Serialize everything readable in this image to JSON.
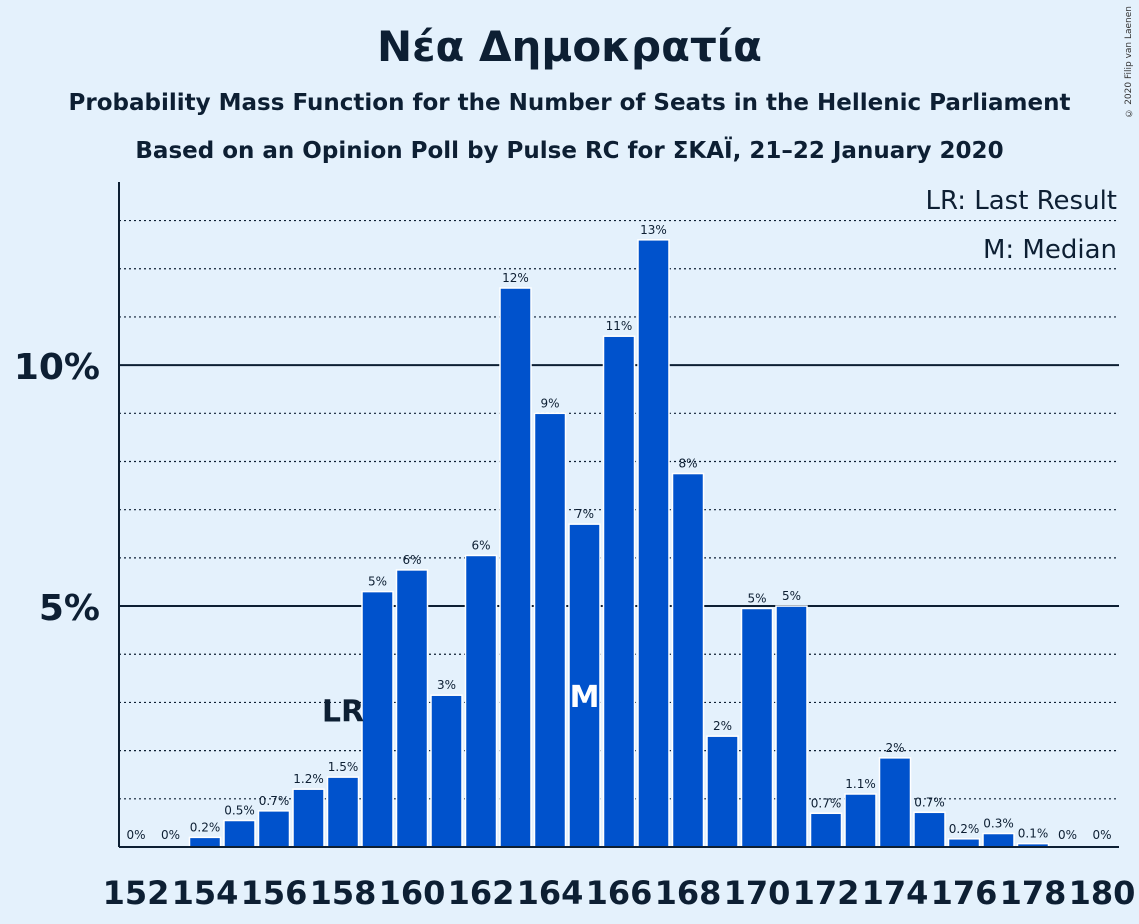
{
  "chart_data": {
    "type": "bar",
    "title": "Νέα Δημοκρατία",
    "subtitle_1": "Probability Mass Function for the Number of Seats in the Hellenic Parliament",
    "subtitle_2": "Based on an Opinion Poll by Pulse RC for ΣΚΑΪ, 21–22 January 2020",
    "copyright": "© 2020 Filip van Laenen",
    "x": [
      152,
      153,
      154,
      155,
      156,
      157,
      158,
      159,
      160,
      161,
      162,
      163,
      164,
      165,
      166,
      167,
      168,
      169,
      170,
      171,
      172,
      173,
      174,
      175,
      176,
      177,
      178,
      179,
      180
    ],
    "values": [
      0,
      0,
      0.2,
      0.55,
      0.75,
      1.2,
      1.45,
      5.3,
      5.75,
      3.15,
      6.05,
      11.6,
      9.0,
      6.7,
      10.6,
      12.6,
      7.75,
      2.3,
      4.95,
      5.0,
      0.7,
      1.1,
      1.85,
      0.72,
      0.17,
      0.28,
      0.07,
      0,
      0
    ],
    "bar_labels": [
      "0%",
      "0%",
      "0.2%",
      "0.5%",
      "0.7%",
      "1.2%",
      "1.5%",
      "5%",
      "6%",
      "3%",
      "6%",
      "12%",
      "9%",
      "7%",
      "11%",
      "13%",
      "8%",
      "2%",
      "5%",
      "5%",
      "0.7%",
      "1.1%",
      "2%",
      "0.7%",
      "0.2%",
      "0.3%",
      "0.1%",
      "0%",
      "0%"
    ],
    "x_tick_labels": [
      "152",
      "154",
      "156",
      "158",
      "160",
      "162",
      "164",
      "166",
      "168",
      "170",
      "172",
      "174",
      "176",
      "178",
      "180"
    ],
    "y_ticks": [
      {
        "value": 5,
        "label": "5%"
      },
      {
        "value": 10,
        "label": "10%"
      }
    ],
    "ylim": [
      0,
      13.8
    ],
    "last_result": {
      "seat": 158,
      "label": "LR"
    },
    "median": {
      "seat": 165,
      "label": "M"
    },
    "legend": {
      "last_result": "LR: Last Result",
      "median": "M: Median",
      "placement": "top-right"
    },
    "grid": true,
    "colors": {
      "bar": "#0052cc",
      "background": "#e4f1fc",
      "text": "#0d1f33"
    }
  }
}
